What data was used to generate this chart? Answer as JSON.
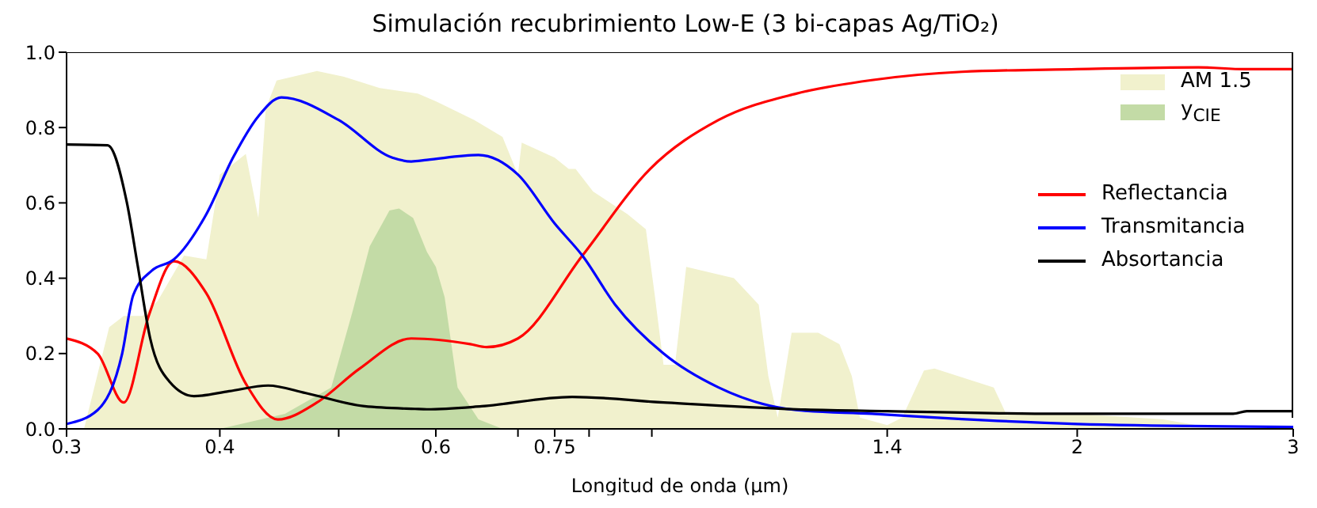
{
  "chart_data": {
    "type": "line",
    "title": "Simulación recubrimiento Low-E (3 bi-capas Ag/TiO₂)",
    "xlabel": "Longitud de onda (μm)",
    "log": "x",
    "xlim": [
      0.3,
      3
    ],
    "xticks": [
      0.3,
      0.4,
      {
        "value": 0.5,
        "label": null
      },
      0.6,
      {
        "value": 0.7,
        "label": null
      },
      0.75,
      {
        "value": 0.8,
        "label": null
      },
      {
        "value": 0.9,
        "label": null
      },
      1.4,
      2,
      3
    ],
    "ylim": [
      0,
      1
    ],
    "yticks": [
      {
        "value": 0,
        "label": "0.0"
      },
      {
        "value": 0.2,
        "label": "0.2"
      },
      {
        "value": 0.4,
        "label": "0.4"
      },
      {
        "value": 0.6,
        "label": "0.6"
      },
      {
        "value": 0.8,
        "label": "0.8"
      },
      {
        "value": 1,
        "label": "1.0"
      }
    ],
    "legend": "right",
    "series": [
      {
        "name": "AM 1.5",
        "type": "area",
        "color": "#f1f1cd",
        "x": [
          0.3,
          0.31,
          0.325,
          0.334,
          0.346,
          0.356,
          0.374,
          0.39,
          0.4,
          0.42,
          0.43,
          0.436,
          0.445,
          0.48,
          0.505,
          0.54,
          0.58,
          0.6,
          0.645,
          0.68,
          0.7,
          0.705,
          0.75,
          0.77,
          0.78,
          0.806,
          0.86,
          0.89,
          0.905,
          0.92,
          0.94,
          0.96,
          1.05,
          1.1,
          1.12,
          1.14,
          1.17,
          1.23,
          1.28,
          1.31,
          1.33,
          1.4,
          1.44,
          1.5,
          1.53,
          1.71,
          1.75,
          2.0,
          2.35,
          2.55,
          3.0
        ],
        "values": [
          0,
          0.0,
          0.27,
          0.3,
          0.3,
          0.34,
          0.46,
          0.45,
          0.675,
          0.73,
          0.56,
          0.85,
          0.925,
          0.95,
          0.935,
          0.905,
          0.89,
          0.87,
          0.82,
          0.775,
          0.675,
          0.76,
          0.72,
          0.69,
          0.69,
          0.63,
          0.57,
          0.53,
          0.355,
          0.17,
          0.17,
          0.43,
          0.4,
          0.33,
          0.14,
          0.03,
          0.255,
          0.255,
          0.225,
          0.14,
          0.03,
          0.01,
          0.03,
          0.155,
          0.16,
          0.11,
          0.04,
          0.04,
          0.025,
          0.005,
          0
        ]
      },
      {
        "name": "y$_{CIE}$",
        "type": "area",
        "color": "#c3dba6",
        "x": [
          0.3,
          0.4,
          0.452,
          0.493,
          0.513,
          0.53,
          0.55,
          0.56,
          0.575,
          0.59,
          0.6,
          0.61,
          0.625,
          0.65,
          0.68,
          3.0
        ],
        "values": [
          0,
          0,
          0.04,
          0.11,
          0.31,
          0.485,
          0.58,
          0.585,
          0.56,
          0.47,
          0.43,
          0.35,
          0.11,
          0.025,
          0,
          0
        ]
      },
      {
        "name": "Reflectancia",
        "color": "#ff0000",
        "x": [
          0.3,
          0.318,
          0.334,
          0.35,
          0.367,
          0.39,
          0.42,
          0.446,
          0.48,
          0.52,
          0.573,
          0.64,
          0.66,
          0.7,
          0.79,
          0.897,
          1.02,
          1.18,
          1.36,
          1.61,
          2.0,
          2.51,
          2.74,
          3.0
        ],
        "values": [
          0.24,
          0.2,
          0.07,
          0.3,
          0.445,
          0.36,
          0.12,
          0.025,
          0.07,
          0.16,
          0.24,
          0.225,
          0.217,
          0.24,
          0.46,
          0.69,
          0.82,
          0.89,
          0.926,
          0.948,
          0.955,
          0.96,
          0.955,
          0.955
        ]
      },
      {
        "name": "Transmitancia",
        "color": "#0000ff",
        "x": [
          0.3,
          0.318,
          0.333,
          0.34,
          0.352,
          0.367,
          0.39,
          0.41,
          0.43,
          0.449,
          0.5,
          0.553,
          0.573,
          0.59,
          0.65,
          0.7,
          0.75,
          0.79,
          0.84,
          0.92,
          1.02,
          1.18,
          1.36,
          1.61,
          2.0,
          3.0
        ],
        "values": [
          0.013,
          0.05,
          0.2,
          0.355,
          0.42,
          0.45,
          0.57,
          0.72,
          0.83,
          0.88,
          0.82,
          0.72,
          0.71,
          0.714,
          0.727,
          0.675,
          0.545,
          0.46,
          0.33,
          0.2,
          0.11,
          0.05,
          0.04,
          0.026,
          0.013,
          0.005
        ]
      },
      {
        "name": "Absortancia",
        "color": "#000000",
        "x": [
          0.3,
          0.324,
          0.336,
          0.343,
          0.351,
          0.364,
          0.381,
          0.407,
          0.438,
          0.47,
          0.525,
          0.577,
          0.59,
          0.654,
          0.775,
          0.92,
          1.18,
          1.4,
          1.93,
          2.68,
          2.75,
          3.0
        ],
        "values": [
          0.755,
          0.753,
          0.6,
          0.43,
          0.24,
          0.125,
          0.087,
          0.1,
          0.115,
          0.095,
          0.06,
          0.053,
          0.052,
          0.06,
          0.085,
          0.07,
          0.052,
          0.047,
          0.04,
          0.04,
          0.047,
          0.047
        ]
      }
    ]
  }
}
